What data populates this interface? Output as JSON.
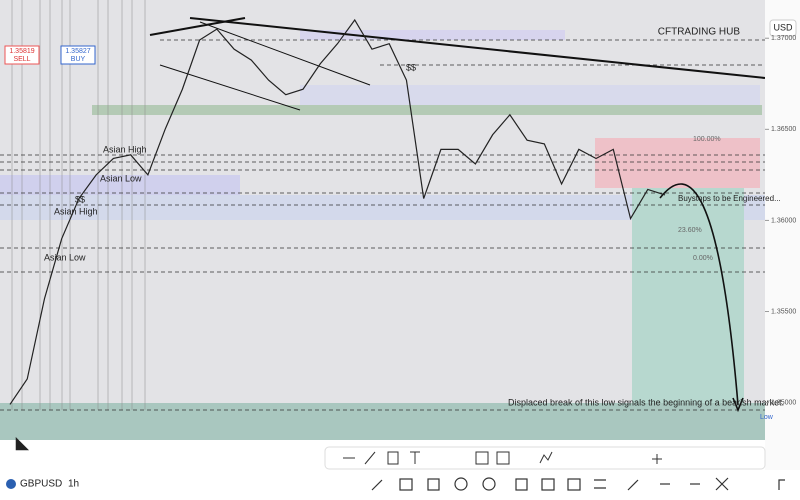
{
  "header": {
    "brand": "CFTRADING HUB",
    "currency": "USD"
  },
  "order": {
    "sell_price": "1.35819",
    "sell": "SELL",
    "buy_price": "1.35827",
    "buy": "BUY"
  },
  "chart_data": {
    "type": "line",
    "color": "#222222",
    "ylim": [
      1.3474,
      1.371
    ],
    "yticks": [
      {
        "value": 1.37,
        "label": "1.37000"
      },
      {
        "value": 1.365,
        "label": "1.36500"
      },
      {
        "value": 1.36,
        "label": "1.36000"
      },
      {
        "value": 1.355,
        "label": "1.35500"
      },
      {
        "value": 1.35,
        "label": "1.35000"
      }
    ],
    "values": [
      1.3499,
      1.3513,
      1.3557,
      1.359,
      1.3612,
      1.3625,
      1.3634,
      1.3636,
      1.3625,
      1.365,
      1.3672,
      1.3699,
      1.3705,
      1.3694,
      1.3688,
      1.3677,
      1.3669,
      1.3672,
      1.3686,
      1.3697,
      1.371,
      1.3694,
      1.3697,
      1.3677,
      1.3612,
      1.3639,
      1.3639,
      1.3631,
      1.3647,
      1.3658,
      1.3644,
      1.3642,
      1.362,
      1.3639,
      1.3634,
      1.3639,
      1.3601,
      1.3617,
      1.3614
    ]
  },
  "annotations": {
    "liquidity_top": "$$",
    "liquidity_left": "$$",
    "asian_high_1": "Asian High",
    "asian_low_1": "Asian Low",
    "asian_high_2": "Asian High",
    "asian_low_2": "Asian Low",
    "fib_100": "100.00%",
    "fib_236": "23.60%",
    "fib_0": "0.00%",
    "buystops": "Buystops to be Engineered...",
    "displaced": "Displaced break of this low signals the beginning of a bearish market.",
    "low": "Low"
  },
  "footer": {
    "symbol": "GBPUSD",
    "interval": "1h"
  }
}
